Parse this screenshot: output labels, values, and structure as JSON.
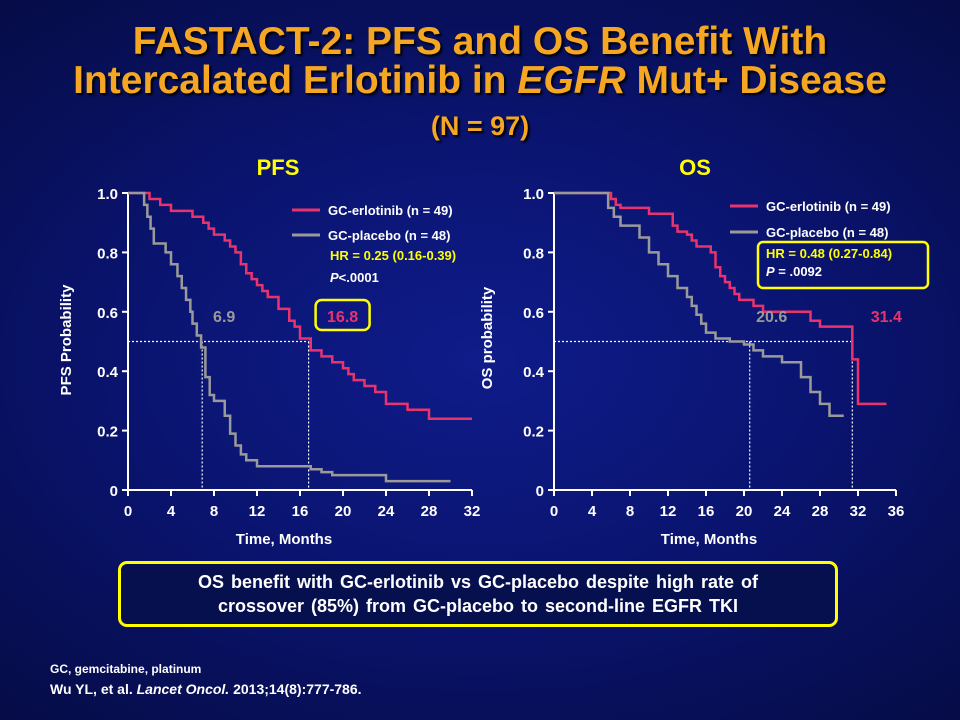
{
  "slide": {
    "title_line1": "FASTACT-2: PFS and OS Benefit With",
    "title_line2_pre": "Intercalated Erlotinib in ",
    "title_line2_italic": "EGFR",
    "title_line2_post": " Mut+ Disease",
    "subtitle": "(N = 97)",
    "callout_line1": "OS benefit with GC-erlotinib vs GC-placebo despite high rate of",
    "callout_line2": "crossover (85%) from GC-placebo to second-line EGFR TKI",
    "footnote_abbrev": "GC, gemcitabine, platinum",
    "citation_authors": "Wu YL, et al. ",
    "citation_journal": "Lancet Oncol.",
    "citation_rest": " 2013;14(8):777-786."
  },
  "colors": {
    "title": "#f5a623",
    "erlotinib": "#e8336d",
    "placebo": "#9a9a9a",
    "highlight": "#ffff00",
    "text": "#ffffff"
  },
  "chart_data": [
    {
      "type": "line",
      "title": "PFS",
      "xlabel": "Time, Months",
      "ylabel": "PFS Probability",
      "xlim": [
        0,
        32
      ],
      "ylim": [
        0,
        1.0
      ],
      "xticks": [
        "0",
        "4",
        "8",
        "12",
        "16",
        "20",
        "24",
        "28",
        "32"
      ],
      "yticks": [
        "0",
        "0.2",
        "0.4",
        "0.6",
        "0.8",
        "1.0"
      ],
      "legend_position": "top-right",
      "series": [
        {
          "name": "GC-erlotinib (n = 49)",
          "color": "#e8336d",
          "x": [
            0,
            2,
            3,
            4,
            6,
            7,
            7.5,
            8,
            9,
            9.5,
            10,
            10.5,
            11,
            11.5,
            12,
            12.5,
            13,
            14,
            15,
            15.5,
            16,
            17,
            18,
            19,
            20,
            20.5,
            21,
            22,
            23,
            24,
            26,
            28,
            30,
            32
          ],
          "y": [
            1.0,
            0.98,
            0.96,
            0.94,
            0.92,
            0.9,
            0.88,
            0.86,
            0.84,
            0.82,
            0.8,
            0.76,
            0.73,
            0.71,
            0.69,
            0.67,
            0.65,
            0.61,
            0.57,
            0.55,
            0.51,
            0.47,
            0.45,
            0.43,
            0.41,
            0.39,
            0.37,
            0.35,
            0.33,
            0.29,
            0.27,
            0.24,
            0.24,
            0.24
          ]
        },
        {
          "name": "GC-placebo (n = 48)",
          "color": "#9a9a9a",
          "x": [
            0,
            1.5,
            1.8,
            2.1,
            2.4,
            3.5,
            4,
            4.6,
            5,
            5.4,
            5.8,
            6,
            6.4,
            6.8,
            7.2,
            7.6,
            8,
            9,
            9.5,
            10,
            10.5,
            11,
            12,
            16,
            17,
            18,
            19,
            24,
            30
          ],
          "y": [
            1.0,
            0.96,
            0.92,
            0.88,
            0.83,
            0.8,
            0.76,
            0.72,
            0.68,
            0.64,
            0.6,
            0.56,
            0.52,
            0.48,
            0.38,
            0.32,
            0.3,
            0.25,
            0.19,
            0.15,
            0.12,
            0.1,
            0.08,
            0.08,
            0.07,
            0.06,
            0.05,
            0.03,
            0.03
          ]
        }
      ],
      "median_line_y": 0.5,
      "medians": [
        {
          "value": 6.9,
          "label": "6.9",
          "series": "GC-placebo (n = 48)",
          "color": "#9a9a9a",
          "boxed": false
        },
        {
          "value": 16.8,
          "label": "16.8",
          "series": "GC-erlotinib (n = 49)",
          "color": "#e8336d",
          "boxed": true
        }
      ],
      "stats_line1": "HR = 0.25 (0.16-0.39)",
      "stats_line2_italic": "P",
      "stats_line2_rest": "<.0001",
      "stats_boxed": false
    },
    {
      "type": "line",
      "title": "OS",
      "xlabel": "Time, Months",
      "ylabel": "OS probability",
      "xlim": [
        0,
        36
      ],
      "ylim": [
        0,
        1.0
      ],
      "xticks": [
        "0",
        "4",
        "8",
        "12",
        "16",
        "20",
        "24",
        "28",
        "32",
        "36"
      ],
      "yticks": [
        "0",
        "0.2",
        "0.4",
        "0.6",
        "0.8",
        "1.0"
      ],
      "legend_position": "top-right",
      "series": [
        {
          "name": "GC-erlotinib (n = 49)",
          "color": "#e8336d",
          "x": [
            0,
            6,
            6.5,
            7,
            8,
            10,
            12,
            12.5,
            13,
            14,
            14.5,
            15,
            16.5,
            17,
            17.5,
            18,
            18.5,
            19,
            19.5,
            20,
            21,
            22,
            24,
            27,
            28,
            31.4,
            32,
            32.5,
            35
          ],
          "y": [
            1.0,
            0.98,
            0.96,
            0.95,
            0.95,
            0.93,
            0.93,
            0.89,
            0.87,
            0.86,
            0.84,
            0.82,
            0.8,
            0.75,
            0.72,
            0.7,
            0.68,
            0.66,
            0.64,
            0.64,
            0.62,
            0.6,
            0.6,
            0.57,
            0.55,
            0.44,
            0.29,
            0.29,
            0.29
          ]
        },
        {
          "name": "GC-placebo (n = 48)",
          "color": "#9a9a9a",
          "x": [
            0,
            5.7,
            6.3,
            7,
            9,
            10,
            11,
            12,
            13,
            14,
            14.5,
            15,
            15.5,
            16,
            17,
            18.5,
            20,
            21,
            22,
            24,
            26,
            27,
            28,
            29,
            30.5
          ],
          "y": [
            1.0,
            0.95,
            0.92,
            0.89,
            0.85,
            0.8,
            0.76,
            0.72,
            0.68,
            0.65,
            0.62,
            0.59,
            0.56,
            0.53,
            0.51,
            0.5,
            0.49,
            0.47,
            0.45,
            0.43,
            0.38,
            0.33,
            0.29,
            0.25,
            0.25
          ]
        }
      ],
      "median_line_y": 0.5,
      "medians": [
        {
          "value": 20.6,
          "label": "20.6",
          "series": "GC-placebo (n = 48)",
          "color": "#9a9a9a",
          "boxed": false
        },
        {
          "value": 31.4,
          "label": "31.4",
          "series": "GC-erlotinib (n = 49)",
          "color": "#e8336d",
          "boxed": false
        }
      ],
      "stats_line1": "HR = 0.48 (0.27-0.84)",
      "stats_line2_italic": "P",
      "stats_line2_rest": " = .0092",
      "stats_boxed": true
    }
  ]
}
